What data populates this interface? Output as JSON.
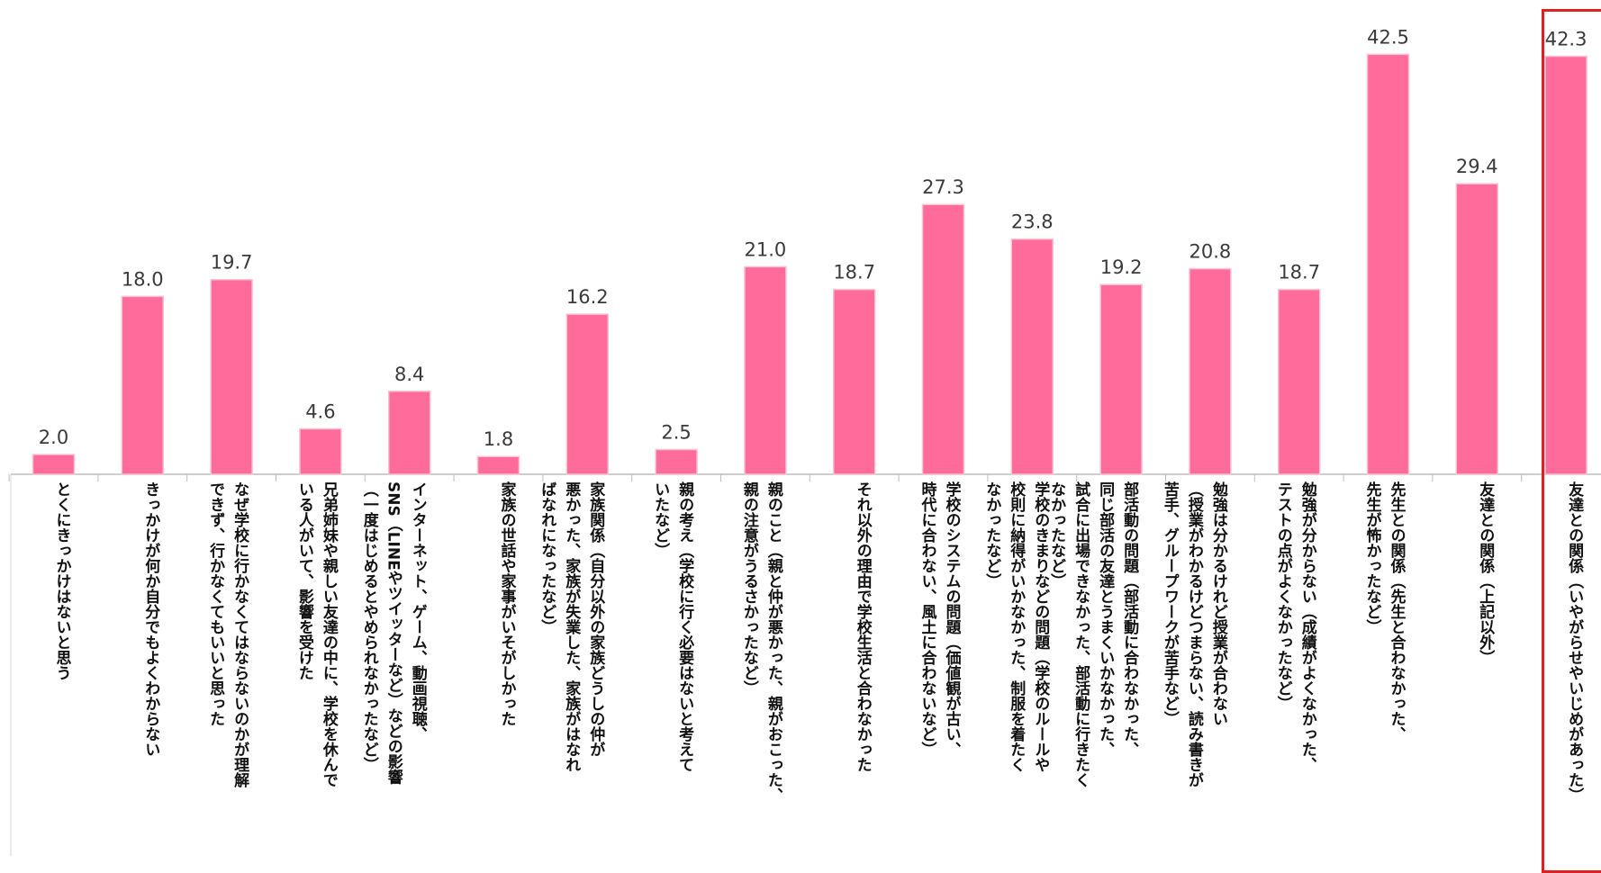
{
  "chart_data": {
    "type": "bar",
    "bar_color": "#ff6b9a",
    "highlight_color": "#e01f1f",
    "ylim": [
      0,
      48
    ],
    "categories": [
      "とくにきっかけはないと思う",
      "きっかけが何か自分でもよくわからない",
      "なぜ学校に行かなくてはならないのかが理解\nできず、行かなくてもいいと思った",
      "兄弟姉妹や親しい友達の中に、学校を休んで\nいる人がいて、影響を受けた",
      "インターネット、ゲーム、動画視聴、\nSNS（LINEやツイッターなど）などの影響\n（一度はじめるとやめられなかったなど）",
      "家族の世話や家事がいそがしかった",
      "家族関係（自分以外の家族どうしの仲が\n悪かった、家族が失業した、家族がはなれ\nばなれになったなど）",
      "親の考え（学校に行く必要はないと考えて\nいたなど）",
      "親のこと（親と仲が悪かった、親がおこった、\n親の注意がうるさかったなど）",
      "それ以外の理由で学校生活と合わなかった",
      "学校のシステムの問題（価値観が古い、\n時代に合わない、風土に合わないなど）",
      "学校のきまりなどの問題（学校のルールや\n校則に納得がいかなかった、制服を着たく\nなかったなど）",
      "部活動の問題（部活動に合わなかった、\n同じ部活の友達とうまくいかなかった、\n試合に出場できなかった、部活動に行きたく\nなかったなど）",
      "勉強は分かるけれど授業が合わない\n（授業がわかるけどつまらない、読み書きが\n苦手、グループワークが苦手など）",
      "勉強が分からない（成績がよくなかった、\nテストの点がよくなかったなど）",
      "先生との関係（先生と合わなかった、\n先生が怖かったなど）",
      "友達との関係（上記以外）",
      "友達との関係（いやがらせやいじめがあった）"
    ],
    "values": [
      2.0,
      18.0,
      19.7,
      4.6,
      8.4,
      1.8,
      16.2,
      2.5,
      21.0,
      18.7,
      27.3,
      23.8,
      19.2,
      20.8,
      18.7,
      42.5,
      29.4,
      42.3
    ],
    "value_labels": [
      "2.0",
      "18.0",
      "19.7",
      "4.6",
      "8.4",
      "1.8",
      "16.2",
      "2.5",
      "21.0",
      "18.7",
      "27.3",
      "23.8",
      "19.2",
      "20.8",
      "18.7",
      "42.5",
      "29.4",
      "42.3"
    ],
    "highlighted_index": 17
  }
}
